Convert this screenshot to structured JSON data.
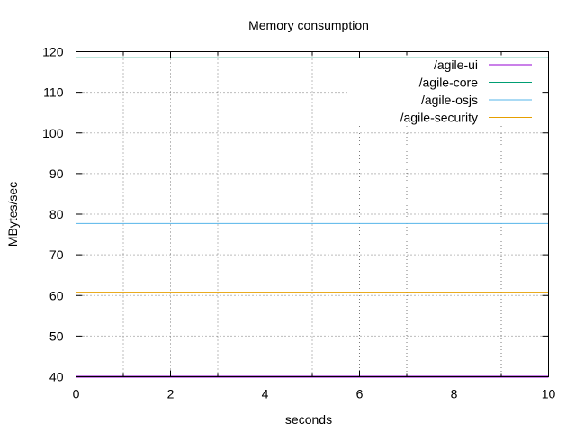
{
  "chart_data": {
    "type": "line",
    "title": "Memory consumption",
    "xlabel": "seconds",
    "ylabel": "MBytes/sec",
    "xlim": [
      0,
      10
    ],
    "ylim": [
      40,
      120
    ],
    "xticks": [
      0,
      2,
      4,
      6,
      8,
      10
    ],
    "yticks": [
      40,
      50,
      60,
      70,
      80,
      90,
      100,
      110,
      120
    ],
    "grid": true,
    "legend_position": "top-right",
    "series": [
      {
        "name": "/agile-ui",
        "color": "#9400d3",
        "x": [
          0,
          10
        ],
        "values": [
          40,
          40
        ]
      },
      {
        "name": "/agile-core",
        "color": "#009e73",
        "x": [
          0,
          10
        ],
        "values": [
          118.5,
          118.5
        ]
      },
      {
        "name": "/agile-osjs",
        "color": "#56b4e9",
        "x": [
          0,
          10
        ],
        "values": [
          77.7,
          77.7
        ]
      },
      {
        "name": "/agile-security",
        "color": "#e69f00",
        "x": [
          0,
          10
        ],
        "values": [
          60.8,
          60.8
        ]
      }
    ]
  }
}
